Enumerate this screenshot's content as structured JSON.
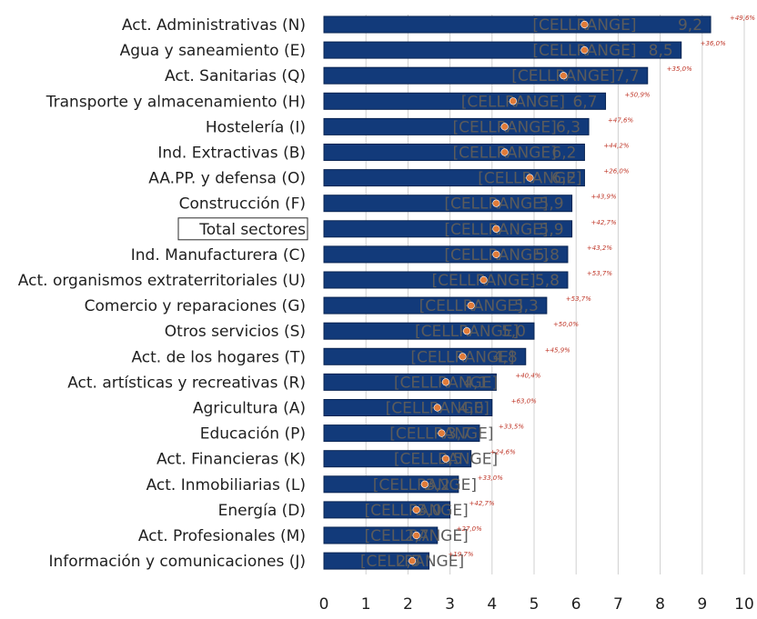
{
  "chart_data": {
    "type": "bar",
    "orientation": "horizontal",
    "xlim": [
      0,
      10
    ],
    "x_ticks": [
      "0",
      "1",
      "2",
      "3",
      "4",
      "5",
      "6",
      "7",
      "8",
      "9",
      "10"
    ],
    "bar_inner_label": "[CELLRANGE]",
    "grid": true,
    "colors": {
      "bar": "#123a7a",
      "bar_border": "#0a2553",
      "marker": "#e07b39",
      "pct": "#c0392b"
    },
    "highlighted_category": "Total sectores",
    "series": [
      {
        "name": "bar_value",
        "values": [
          9.2,
          8.5,
          7.7,
          6.7,
          6.3,
          6.2,
          6.2,
          5.9,
          5.9,
          5.8,
          5.8,
          5.3,
          5.0,
          4.8,
          4.1,
          4.0,
          3.7,
          3.5,
          3.2,
          3.0,
          2.7,
          2.5
        ]
      },
      {
        "name": "marker_value",
        "values": [
          6.2,
          6.2,
          5.7,
          4.5,
          4.3,
          4.3,
          4.9,
          4.1,
          4.1,
          4.1,
          3.8,
          3.5,
          3.4,
          3.3,
          2.9,
          2.7,
          2.8,
          2.9,
          2.4,
          2.2,
          2.2,
          2.1
        ]
      },
      {
        "name": "pct_label",
        "values": [
          "+49,6%",
          "+36,0%",
          "+35,0%",
          "+50,9%",
          "+47,6%",
          "+44,2%",
          "+26,0%",
          "+43,9%",
          "+42,7%",
          "+43,2%",
          "+53,7%",
          "+53,7%",
          "+50,0%",
          "+45,9%",
          "+40,4%",
          "+63,0%",
          "+33,5%",
          "+24,6%",
          "+33,0%",
          "+42,7%",
          "+27,0%",
          "+19,7%"
        ]
      }
    ],
    "categories": [
      "Act. Administrativas (N)",
      "Agua y saneamiento (E)",
      "Act. Sanitarias (Q)",
      "Transporte y almacenamiento (H)",
      "Hostelería (I)",
      "Ind. Extractivas (B)",
      "AA.PP. y defensa (O)",
      "Construcción (F)",
      "Total sectores",
      "Ind. Manufacturera (C)",
      "Act. organismos extraterritoriales (U)",
      "Comercio y reparaciones (G)",
      "Otros servicios (S)",
      "Act. de los hogares (T)",
      "Act. artísticas y recreativas (R)",
      "Agricultura (A)",
      "Educación (P)",
      "Act. Financieras (K)",
      "Act. Inmobiliarias (L)",
      "Energía (D)",
      "Act. Profesionales (M)",
      "Información y comunicaciones (J)"
    ],
    "value_labels": [
      "9,2",
      "8,5",
      "7,7",
      "6,7",
      "6,3",
      "6,2",
      "6,2",
      "5,9",
      "5,9",
      "5,8",
      "5,8",
      "5,3",
      "5,0",
      "4,8",
      "4,1",
      "4,0",
      "3,7",
      "3,5",
      "3,2",
      "3,0",
      "2,7",
      "2,5"
    ]
  }
}
